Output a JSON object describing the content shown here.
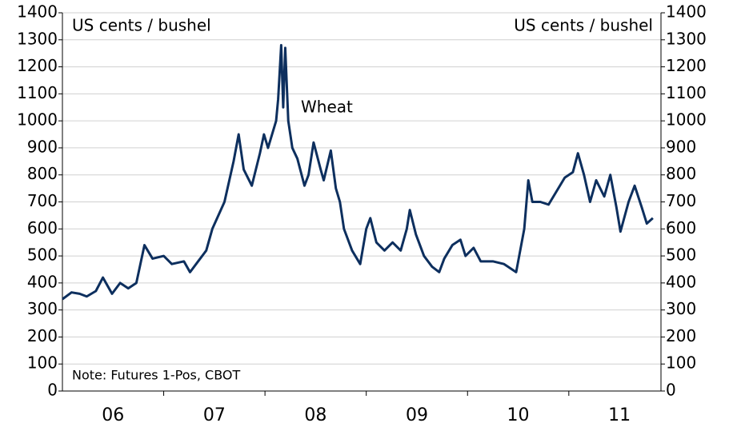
{
  "chart_data": {
    "type": "line",
    "y_label": "US cents / bushel",
    "y2_label": "US cents / bushel",
    "note": "Note: Futures 1-Pos, CBOT",
    "x": [
      2006.0,
      2006.09,
      2006.17,
      2006.24,
      2006.33,
      2006.4,
      2006.49,
      2006.57,
      2006.65,
      2006.73,
      2006.81,
      2006.89,
      2007.0,
      2007.08,
      2007.2,
      2007.26,
      2007.34,
      2007.42,
      2007.48,
      2007.6,
      2007.69,
      2007.74,
      2007.79,
      2007.87,
      2007.95,
      2007.99,
      2008.03,
      2008.11,
      2008.13,
      2008.16,
      2008.18,
      2008.2,
      2008.23,
      2008.27,
      2008.32,
      2008.39,
      2008.43,
      2008.48,
      2008.55,
      2008.58,
      2008.65,
      2008.7,
      2008.74,
      2008.78,
      2008.86,
      2008.94,
      2009.0,
      2009.04,
      2009.1,
      2009.18,
      2009.26,
      2009.34,
      2009.4,
      2009.43,
      2009.49,
      2009.57,
      2009.65,
      2009.72,
      2009.77,
      2009.85,
      2009.93,
      2009.98,
      2010.06,
      2010.13,
      2010.25,
      2010.36,
      2010.44,
      2010.48,
      2010.56,
      2010.6,
      2010.64,
      2010.72,
      2010.8,
      2010.88,
      2010.96,
      2011.04,
      2011.09,
      2011.15,
      2011.21,
      2011.27,
      2011.35,
      2011.41,
      2011.47,
      2011.51,
      2011.59,
      2011.65,
      2011.72,
      2011.77,
      2011.83
    ],
    "series": [
      {
        "name": "Wheat",
        "color": "#0d2f5e",
        "values": [
          340,
          365,
          360,
          350,
          370,
          420,
          360,
          400,
          380,
          400,
          540,
          490,
          500,
          470,
          480,
          440,
          480,
          520,
          600,
          700,
          850,
          950,
          820,
          760,
          880,
          950,
          900,
          1000,
          1080,
          1280,
          1050,
          1270,
          1000,
          900,
          860,
          760,
          800,
          920,
          820,
          780,
          890,
          750,
          700,
          600,
          520,
          470,
          600,
          640,
          550,
          520,
          550,
          520,
          600,
          670,
          580,
          500,
          460,
          440,
          490,
          540,
          560,
          500,
          530,
          480,
          480,
          470,
          450,
          440,
          600,
          780,
          700,
          700,
          690,
          740,
          790,
          810,
          880,
          800,
          700,
          780,
          720,
          800,
          680,
          590,
          700,
          760,
          680,
          620,
          640
        ]
      }
    ],
    "xlim": [
      2006,
      2011.91
    ],
    "xticks": [
      {
        "value": 2006.5,
        "label": "06"
      },
      {
        "value": 2007.5,
        "label": "07"
      },
      {
        "value": 2008.5,
        "label": "08"
      },
      {
        "value": 2009.5,
        "label": "09"
      },
      {
        "value": 2010.5,
        "label": "10"
      },
      {
        "value": 2011.5,
        "label": "11"
      }
    ],
    "ylim": [
      0,
      1400
    ],
    "yticks": [
      0,
      100,
      200,
      300,
      400,
      500,
      600,
      700,
      800,
      900,
      1000,
      1100,
      1200,
      1300,
      1400
    ],
    "y2lim": [
      0,
      1400
    ],
    "y2ticks": [
      0,
      100,
      200,
      300,
      400,
      500,
      600,
      700,
      800,
      900,
      1000,
      1100,
      1200,
      1300,
      1400
    ],
    "grid": true
  }
}
